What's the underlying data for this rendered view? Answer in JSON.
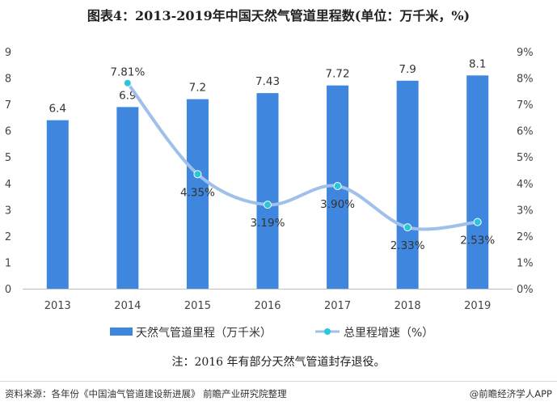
{
  "title": "图表4：2013-2019年中国天然气管道里程数(单位：万千米，%)",
  "note": "注：2016 年有部分天然气管道封存退役。",
  "footer": {
    "source": "资料来源：各年份《中国油气管道建设新进展》 前瞻产业研究院整理",
    "brand": "@前瞻经济学人APP"
  },
  "colors": {
    "bar": "#3f86de",
    "line": "#9fc0ea",
    "marker": "#29c7d9"
  },
  "chart_data": {
    "type": "bar",
    "categories": [
      "2013",
      "2014",
      "2015",
      "2016",
      "2017",
      "2018",
      "2019"
    ],
    "series": [
      {
        "name": "天然气管道里程（万千米）",
        "type": "bar",
        "axis": "left",
        "values": [
          6.4,
          6.9,
          7.2,
          7.43,
          7.72,
          7.9,
          8.1
        ],
        "labels": [
          "6.4",
          "6.9",
          "7.2",
          "7.43",
          "7.72",
          "7.9",
          "8.1"
        ]
      },
      {
        "name": "总里程增速（%）",
        "type": "line",
        "axis": "right",
        "x": [
          "2014",
          "2015",
          "2016",
          "2017",
          "2018",
          "2019"
        ],
        "values": [
          7.81,
          4.35,
          3.19,
          3.9,
          2.33,
          2.53
        ],
        "labels": [
          "7.81%",
          "4.35%",
          "3.19%",
          "3.90%",
          "2.33%",
          "2.53%"
        ]
      }
    ],
    "ylim": [
      0,
      9
    ],
    "y_ticks": [
      "0",
      "1",
      "2",
      "3",
      "4",
      "5",
      "6",
      "7",
      "8",
      "9"
    ],
    "y2lim": [
      0,
      9
    ],
    "y2_ticks": [
      "0%",
      "1%",
      "2%",
      "3%",
      "4%",
      "5%",
      "6%",
      "7%",
      "8%",
      "9%"
    ],
    "grid": false,
    "legend": "bottom"
  }
}
